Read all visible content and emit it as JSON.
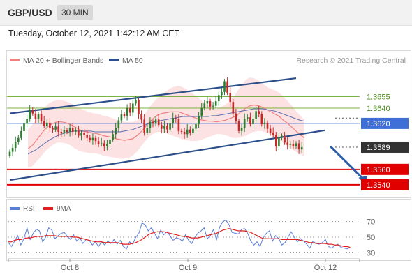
{
  "header": {
    "symbol": "GBP/USD",
    "timeframe": "30 MIN",
    "datetime": "Tuesday, October 12, 2021 1:42:12 AM CET"
  },
  "legend": {
    "main": [
      {
        "label": "MA 20 + Bollinger Bands",
        "color": "#f08080"
      },
      {
        "label": "MA 50",
        "color": "#2c4f8a"
      }
    ],
    "rsi": [
      {
        "label": "RSI",
        "color": "#5b7fd9"
      },
      {
        "label": "9MA",
        "color": "#e02020"
      }
    ]
  },
  "watermark": "Research © 2021 Trading Central",
  "colors": {
    "bull": "#2e7d32",
    "bear": "#c62828",
    "channel": "#2c4f8a",
    "support": "#e00000",
    "resistance": "#7cb342",
    "pivot": "#3d6fd6",
    "current": "#333333"
  },
  "price_levels": [
    {
      "label": "1.3655",
      "kind": "resistance"
    },
    {
      "label": "1.3640",
      "kind": "resistance"
    },
    {
      "label": "1.3620",
      "kind": "pivot"
    },
    {
      "label": "1.3589",
      "kind": "current"
    },
    {
      "label": "1.3560",
      "kind": "support"
    },
    {
      "label": "1.3540",
      "kind": "support"
    }
  ],
  "chart_data": [
    {
      "type": "candlestick",
      "title": "GBP/USD 30 MIN",
      "x_ticks": [
        "Oct 8",
        "Oct 9",
        "Oct 12"
      ],
      "ylim": [
        1.3528,
        1.369
      ],
      "close": [
        1.3583,
        1.3588,
        1.3596,
        1.3601,
        1.361,
        1.362,
        1.3626,
        1.3637,
        1.3633,
        1.3626,
        1.3632,
        1.3623,
        1.3617,
        1.3621,
        1.3614,
        1.3612,
        1.3616,
        1.3609,
        1.3607,
        1.3611,
        1.3609,
        1.3614,
        1.3609,
        1.3611,
        1.3604,
        1.3608,
        1.3605,
        1.3601,
        1.3598,
        1.3601,
        1.3597,
        1.3593,
        1.3594,
        1.359,
        1.3593,
        1.3599,
        1.3606,
        1.3614,
        1.3624,
        1.3632,
        1.363,
        1.364,
        1.3634,
        1.3646,
        1.365,
        1.3632,
        1.3625,
        1.3608,
        1.3614,
        1.3622,
        1.362,
        1.3625,
        1.3618,
        1.3613,
        1.3617,
        1.3612,
        1.362,
        1.3627,
        1.3626,
        1.361,
        1.3609,
        1.3606,
        1.3612,
        1.3608,
        1.3613,
        1.3619,
        1.363,
        1.364,
        1.3646,
        1.3649,
        1.3642,
        1.3643,
        1.3649,
        1.3657,
        1.3661,
        1.3675,
        1.366,
        1.3648,
        1.3633,
        1.3623,
        1.361,
        1.3614,
        1.3626,
        1.3628,
        1.3619,
        1.3626,
        1.3636,
        1.3632,
        1.3619,
        1.3621,
        1.3613,
        1.3608,
        1.3605,
        1.359,
        1.3602,
        1.3604,
        1.3595,
        1.3592,
        1.3593,
        1.359,
        1.3594,
        1.3586,
        1.3589
      ],
      "bollinger_upper": [
        1.3612,
        1.3618,
        1.3626,
        1.3634,
        1.3641,
        1.3646,
        1.3649,
        1.365,
        1.365,
        1.3649,
        1.3647,
        1.3644,
        1.3641,
        1.3638,
        1.3636,
        1.3634,
        1.3633,
        1.3632,
        1.363,
        1.3629,
        1.3627,
        1.3625,
        1.3624,
        1.3622,
        1.3622,
        1.3622,
        1.3624,
        1.3627,
        1.3633,
        1.3641,
        1.3648,
        1.3653,
        1.3657,
        1.3662,
        1.3666,
        1.3668,
        1.3669,
        1.3667,
        1.3664,
        1.366,
        1.3656,
        1.3652,
        1.3647,
        1.3644,
        1.3641,
        1.3639,
        1.3641,
        1.3644,
        1.3648,
        1.3654,
        1.3662,
        1.367,
        1.3677,
        1.368,
        1.3679,
        1.3676,
        1.3672,
        1.3668,
        1.3665,
        1.3663,
        1.366,
        1.3655,
        1.3649,
        1.3643,
        1.3636,
        1.363,
        1.3625
      ],
      "bollinger_lower": [
        1.3562,
        1.3564,
        1.357,
        1.3576,
        1.3583,
        1.3588,
        1.3592,
        1.3595,
        1.3595,
        1.3594,
        1.3592,
        1.3588,
        1.3585,
        1.3583,
        1.3582,
        1.3581,
        1.3581,
        1.358,
        1.3578,
        1.3577,
        1.3576,
        1.3575,
        1.3574,
        1.3574,
        1.3575,
        1.3578,
        1.3583,
        1.359,
        1.3597,
        1.3603,
        1.3607,
        1.3609,
        1.3609,
        1.3607,
        1.3605,
        1.3603,
        1.3601,
        1.3599,
        1.3598,
        1.3597,
        1.3597,
        1.3598,
        1.36,
        1.3602,
        1.3604,
        1.3606,
        1.3606,
        1.3605,
        1.3603,
        1.3601,
        1.3601,
        1.3602,
        1.3604,
        1.3607,
        1.3609,
        1.361,
        1.361,
        1.3608,
        1.3605,
        1.3602,
        1.3598,
        1.3594,
        1.359,
        1.3586,
        1.3583,
        1.358,
        1.3577
      ],
      "ma20": [
        1.3587,
        1.3591,
        1.3598,
        1.3605,
        1.3612,
        1.3617,
        1.362,
        1.3622,
        1.3622,
        1.3621,
        1.3619,
        1.3616,
        1.3613,
        1.361,
        1.3609,
        1.3608,
        1.3607,
        1.3606,
        1.3604,
        1.3603,
        1.3602,
        1.36,
        1.3599,
        1.3598,
        1.3599,
        1.36,
        1.3604,
        1.3609,
        1.3615,
        1.3622,
        1.3627,
        1.3631,
        1.3633,
        1.3634,
        1.3635,
        1.3635,
        1.3635,
        1.3633,
        1.3631,
        1.3629,
        1.3627,
        1.3625,
        1.3624,
        1.3623,
        1.3623,
        1.3622,
        1.3623,
        1.3624,
        1.3626,
        1.3628,
        1.3631,
        1.3636,
        1.364,
        1.3643,
        1.3644,
        1.3643,
        1.3641,
        1.3638,
        1.3635,
        1.3632,
        1.3629,
        1.3624,
        1.362,
        1.3615,
        1.361,
        1.3605,
        1.3601
      ],
      "ma50": [
        1.358,
        1.3583,
        1.3586,
        1.359,
        1.3594,
        1.3598,
        1.3601,
        1.3604,
        1.3606,
        1.3608,
        1.3609,
        1.361,
        1.361,
        1.361,
        1.361,
        1.361,
        1.3609,
        1.3609,
        1.3609,
        1.3609,
        1.3609,
        1.3609,
        1.3609,
        1.361,
        1.3611,
        1.3612,
        1.3614,
        1.3616,
        1.3618,
        1.362,
        1.3622,
        1.3623,
        1.3624,
        1.3625,
        1.3626,
        1.3627,
        1.3628,
        1.3629,
        1.3629,
        1.3629,
        1.3629,
        1.3629,
        1.3629,
        1.3629,
        1.363,
        1.363,
        1.3631,
        1.3632,
        1.3633,
        1.3634,
        1.3635,
        1.3636,
        1.3637,
        1.3638,
        1.3639,
        1.3639,
        1.3639,
        1.3638,
        1.3637,
        1.3636,
        1.3634,
        1.3632,
        1.363,
        1.3628,
        1.3626,
        1.3624,
        1.3623
      ],
      "channel_upper": {
        "from": {
          "i": 0,
          "y": 1.3633
        },
        "to": {
          "i": 100,
          "y": 1.3679
        }
      },
      "channel_lower": {
        "from": {
          "i": 0,
          "y": 1.3546
        },
        "to": {
          "i": 110,
          "y": 1.3611
        }
      },
      "forecast_arrow": {
        "from": {
          "i": 112,
          "y": 1.359
        },
        "to": {
          "i": 124,
          "y": 1.3541
        }
      },
      "y_labels": [
        "1.3655",
        "1.3640",
        "1.3620",
        "1.3589",
        "1.3560",
        "1.3540"
      ]
    },
    {
      "type": "line",
      "title": "RSI",
      "ylim": [
        25,
        75
      ],
      "y_ticks": [
        70,
        50,
        30
      ],
      "series": [
        {
          "name": "RSI",
          "values": [
            43,
            38,
            45,
            52,
            40,
            48,
            62,
            47,
            55,
            60,
            58,
            44,
            50,
            62,
            59,
            48,
            52,
            55,
            56,
            51,
            47,
            53,
            45,
            49,
            42,
            47,
            46,
            40,
            44,
            38,
            44,
            40,
            45,
            42,
            47,
            41,
            46,
            38,
            35,
            44,
            41,
            50,
            55,
            68,
            66,
            58,
            62,
            55,
            48,
            59,
            53,
            57,
            52,
            46,
            49,
            48,
            45,
            53,
            46,
            42,
            50,
            55,
            58,
            62,
            48,
            52,
            60,
            47,
            63,
            70,
            72,
            66,
            56,
            55,
            54,
            60,
            61,
            55,
            45,
            40,
            44,
            38,
            49,
            55,
            58,
            45,
            52,
            48,
            40,
            43,
            50,
            57,
            50,
            44,
            48,
            45,
            41,
            36,
            45,
            42,
            41,
            43,
            47,
            38,
            36,
            39,
            41,
            37,
            36,
            35,
            37
          ]
        },
        {
          "name": "9MA",
          "values": [
            44,
            44,
            46,
            47,
            47,
            48,
            49,
            49,
            50,
            51,
            51,
            51,
            52,
            52,
            52,
            52,
            51,
            51,
            51,
            51,
            51,
            50,
            50,
            49,
            48,
            47,
            46,
            45,
            44,
            44,
            44,
            43,
            43,
            43,
            43,
            43,
            42,
            41,
            41,
            41,
            42,
            43,
            45,
            47,
            50,
            53,
            55,
            56,
            57,
            57,
            57,
            56,
            55,
            54,
            53,
            52,
            51,
            51,
            50,
            49,
            49,
            49,
            50,
            51,
            52,
            53,
            54,
            55,
            57,
            59,
            60,
            61,
            60,
            59,
            58,
            58,
            58,
            57,
            56,
            54,
            52,
            50,
            48,
            48,
            48,
            48,
            48,
            48,
            47,
            47,
            47,
            47,
            47,
            47,
            46,
            45,
            44,
            43,
            43,
            42,
            42,
            42,
            42,
            41,
            41,
            40,
            40,
            39,
            38,
            38,
            37
          ]
        }
      ]
    }
  ]
}
